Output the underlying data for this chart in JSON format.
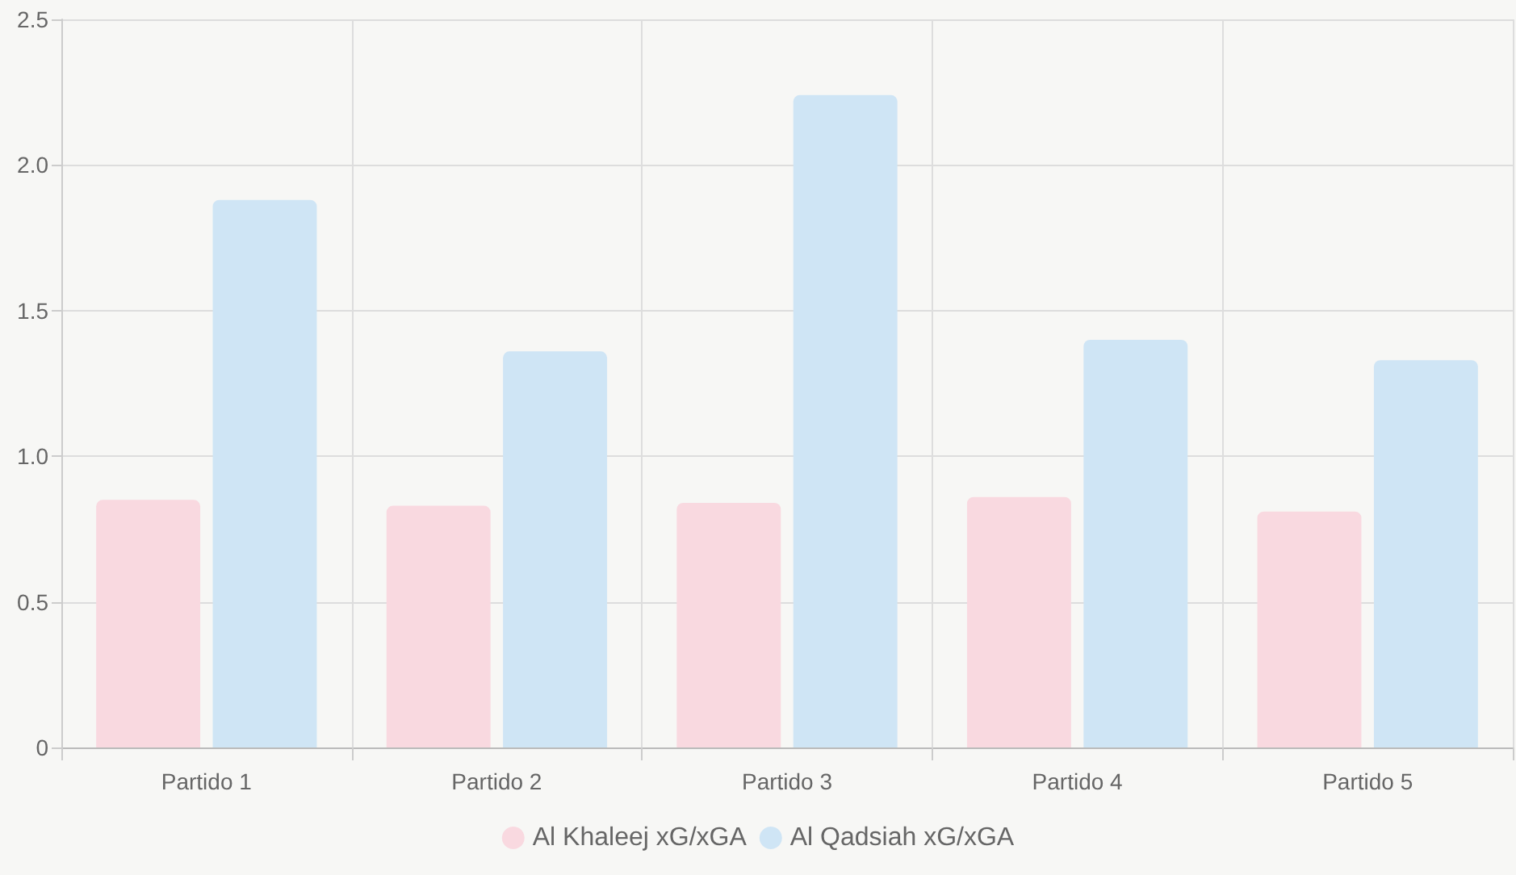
{
  "chart_data": {
    "type": "bar",
    "categories": [
      "Partido 1",
      "Partido 2",
      "Partido 3",
      "Partido 4",
      "Partido 5"
    ],
    "series": [
      {
        "name": "Al Khaleej xG/xGA",
        "color": "#f9d9e0",
        "values": [
          0.85,
          0.83,
          0.84,
          0.86,
          0.81
        ]
      },
      {
        "name": "Al Qadsiah xG/xGA",
        "color": "#cfe5f5",
        "values": [
          1.88,
          1.36,
          2.24,
          1.4,
          1.33
        ]
      }
    ],
    "ylim": [
      0,
      2.5
    ],
    "yticks": [
      0,
      0.5,
      {
        "value": 1,
        "label": "1.0"
      },
      {
        "value": 1.5,
        "label": "1.5"
      },
      {
        "value": 2,
        "label": "2.0"
      },
      {
        "value": 2.5,
        "label": "2.5"
      }
    ],
    "grid": true,
    "legend": "bottom"
  }
}
